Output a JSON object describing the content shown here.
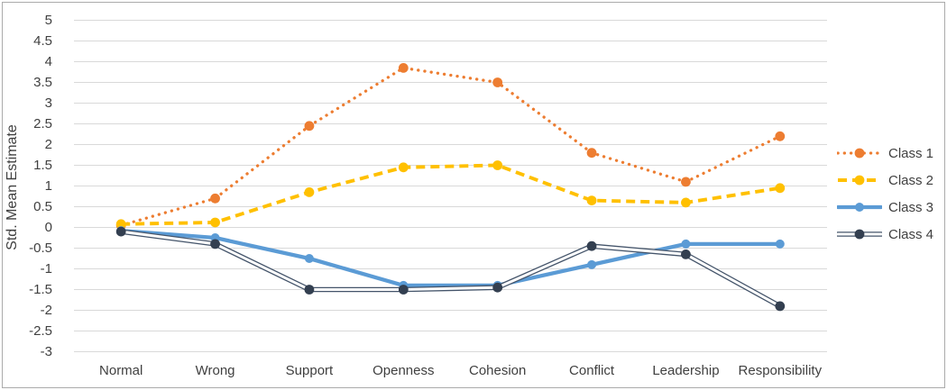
{
  "chart_data": {
    "type": "line",
    "title": "",
    "xlabel": "",
    "ylabel": "Std. Mean Estimate",
    "categories": [
      "Normal",
      "Wrong",
      "Support",
      "Openness",
      "Cohesion",
      "Conflict",
      "Leadership",
      "Responsibility"
    ],
    "y_tick_labels": [
      "5",
      "4.5",
      "4",
      "3.5",
      "3",
      "2.5",
      "2",
      "1.5",
      "1",
      "0.5",
      "0",
      "-0.5",
      "-1",
      "-1.5",
      "-2",
      "-2.5",
      "-3"
    ],
    "ylim": [
      -3,
      5
    ],
    "grid": true,
    "legend_position": "right",
    "series": [
      {
        "name": "Class 1",
        "style": "dotted",
        "color": "#ED7D31",
        "marker_color": "#ED7D31",
        "values": [
          0.05,
          0.7,
          2.45,
          3.85,
          3.5,
          1.8,
          1.1,
          2.2
        ]
      },
      {
        "name": "Class 2",
        "style": "dashed",
        "color": "#FFC000",
        "marker_color": "#FFC000",
        "values": [
          0.08,
          0.12,
          0.85,
          1.45,
          1.5,
          0.65,
          0.6,
          0.95
        ]
      },
      {
        "name": "Class 3",
        "style": "solid",
        "color": "#5B9BD5",
        "marker_color": "#5B9BD5",
        "values": [
          -0.08,
          -0.25,
          -0.75,
          -1.4,
          -1.4,
          -0.9,
          -0.4,
          -0.4
        ]
      },
      {
        "name": "Class 4",
        "style": "double",
        "color": "#44546A",
        "marker_color": "#333F50",
        "values": [
          -0.1,
          -0.4,
          -1.5,
          -1.5,
          -1.45,
          -0.45,
          -0.65,
          -1.9
        ]
      }
    ],
    "colors": {
      "gridline": "#D9D9D9",
      "axis_text": "#404040",
      "background": "#FFFFFF",
      "frame_border": "#ABABAB"
    }
  }
}
